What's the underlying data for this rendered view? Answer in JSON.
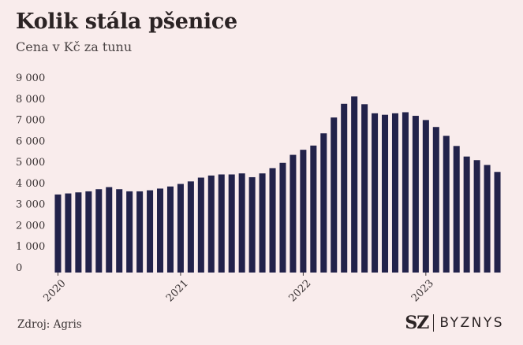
{
  "header": {
    "title": "Kolik stála pšenice",
    "subtitle": "Cena v Kč za tunu"
  },
  "footer": {
    "source": "Zdroj: Agris",
    "brand_mark": "SZ",
    "brand_name": "BYZNYS"
  },
  "colors": {
    "background": "#f9ecec",
    "bar": "#22224a",
    "text": "#2b2324",
    "axis_text": "#3a3334"
  },
  "chart_data": {
    "type": "bar",
    "title": "Kolik stála pšenice",
    "ylabel": "Cena v Kč za tunu",
    "xlabel": "",
    "ylim": [
      0,
      9000
    ],
    "y_ticks": [
      0,
      1000,
      2000,
      3000,
      4000,
      5000,
      6000,
      7000,
      8000,
      9000
    ],
    "y_tick_labels": [
      "0",
      "1 000",
      "2 000",
      "3 000",
      "4 000",
      "5 000",
      "6 000",
      "7 000",
      "8 000",
      "9 000"
    ],
    "x_tick_labels": [
      {
        "label": "2020",
        "index": 0
      },
      {
        "label": "2021",
        "index": 12
      },
      {
        "label": "2022",
        "index": 24
      },
      {
        "label": "2023",
        "index": 36
      }
    ],
    "grid": false,
    "categories": [
      "2020-01",
      "2020-02",
      "2020-03",
      "2020-04",
      "2020-05",
      "2020-06",
      "2020-07",
      "2020-08",
      "2020-09",
      "2020-10",
      "2020-11",
      "2020-12",
      "2021-01",
      "2021-02",
      "2021-03",
      "2021-04",
      "2021-05",
      "2021-06",
      "2021-07",
      "2021-08",
      "2021-09",
      "2021-10",
      "2021-11",
      "2021-12",
      "2022-01",
      "2022-02",
      "2022-03",
      "2022-04",
      "2022-05",
      "2022-06",
      "2022-07",
      "2022-08",
      "2022-09",
      "2022-10",
      "2022-11",
      "2022-12",
      "2023-01",
      "2023-02",
      "2023-03",
      "2023-04",
      "2023-05",
      "2023-06",
      "2023-07",
      "2023-08"
    ],
    "values": [
      3700,
      3750,
      3800,
      3850,
      3950,
      4050,
      3950,
      3850,
      3850,
      3900,
      3980,
      4080,
      4200,
      4320,
      4500,
      4600,
      4650,
      4650,
      4700,
      4520,
      4700,
      4950,
      5200,
      5580,
      5820,
      6020,
      6600,
      7350,
      8000,
      8350,
      7980,
      7550,
      7480,
      7550,
      7600,
      7430,
      7230,
      6900,
      6480,
      6000,
      5500,
      5330,
      5100,
      4770
    ]
  }
}
